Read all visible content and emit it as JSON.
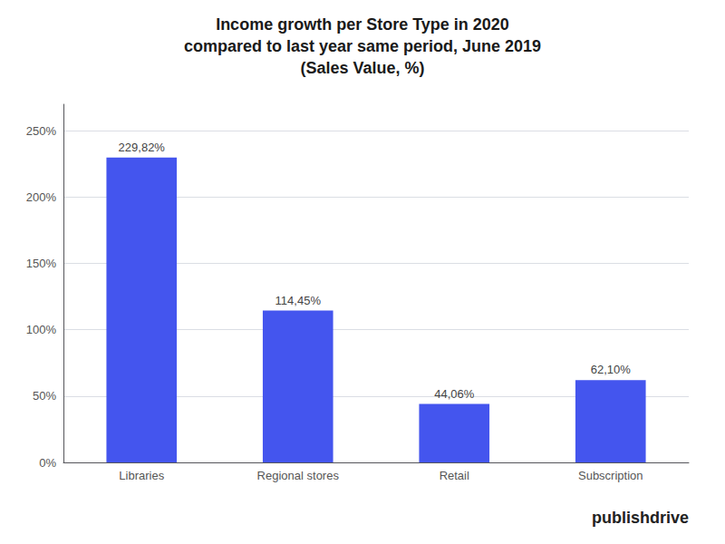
{
  "chart_data": {
    "type": "bar",
    "title": "Income growth per Store Type in 2020\ncompared to last year same period, June 2019\n(Sales Value, %)",
    "categories": [
      "Libraries",
      "Regional stores",
      "Retail",
      "Subscription"
    ],
    "values": [
      229.82,
      114.45,
      44.06,
      62.1
    ],
    "value_labels": [
      "229,82%",
      "114,45%",
      "44,06%",
      "62,10%"
    ],
    "data_labels": true,
    "color": "#4455ee",
    "ylim": [
      0,
      270
    ],
    "yticks": [
      {
        "value": 0,
        "label": "0%"
      },
      {
        "value": 50,
        "label": "50%"
      },
      {
        "value": 100,
        "label": "100%"
      },
      {
        "value": 150,
        "label": "150%"
      },
      {
        "value": 200,
        "label": "200%"
      },
      {
        "value": 250,
        "label": "250%"
      }
    ],
    "grid": true,
    "annotations": [
      "publishdrive"
    ]
  }
}
